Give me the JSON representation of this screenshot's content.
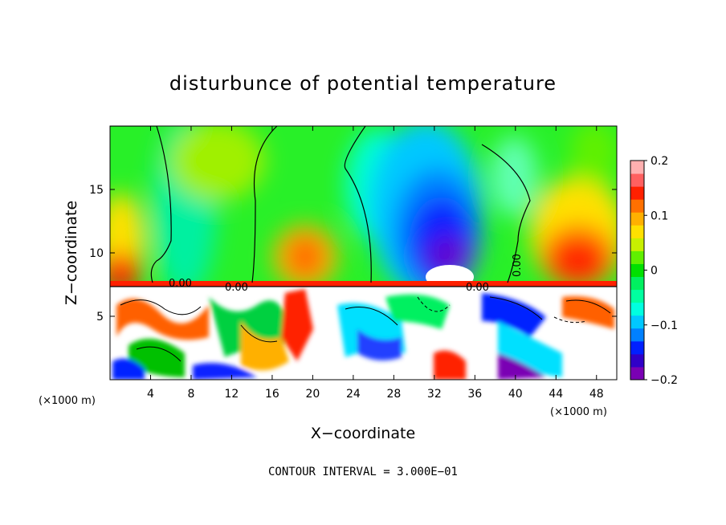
{
  "chart_data": {
    "type": "heatmap",
    "title": "disturbunce of potential temperature",
    "xlabel": "X−coordinate",
    "ylabel": "Z−coordinate",
    "x_unit_left": "(×1000 m)",
    "x_unit_right": "(×1000 m)",
    "xlim": [
      0,
      50
    ],
    "ylim": [
      0,
      20
    ],
    "x_ticks": [
      "4",
      "8",
      "12",
      "16",
      "20",
      "24",
      "28",
      "32",
      "36",
      "40",
      "44",
      "48"
    ],
    "y_ticks": [
      "5",
      "10",
      "15"
    ],
    "colorbar": {
      "range": [
        -0.2,
        0.2
      ],
      "tick_labels": [
        "0.2",
        "0.1",
        "0",
        "−0.1",
        "−0.2"
      ],
      "colors": [
        "#7a00b4",
        "#3000c8",
        "#0020ff",
        "#0080ff",
        "#00c8ff",
        "#00ffe0",
        "#00ffa0",
        "#00f060",
        "#00e000",
        "#60f000",
        "#c8f000",
        "#ffe000",
        "#ffb000",
        "#ff7000",
        "#ff2000",
        "#ff6060",
        "#ffb0b0"
      ]
    },
    "contour_labels": [
      "0.00",
      "0.00",
      "0.00",
      "0.00"
    ],
    "footer": "CONTOUR INTERVAL = 3.000E−01"
  }
}
